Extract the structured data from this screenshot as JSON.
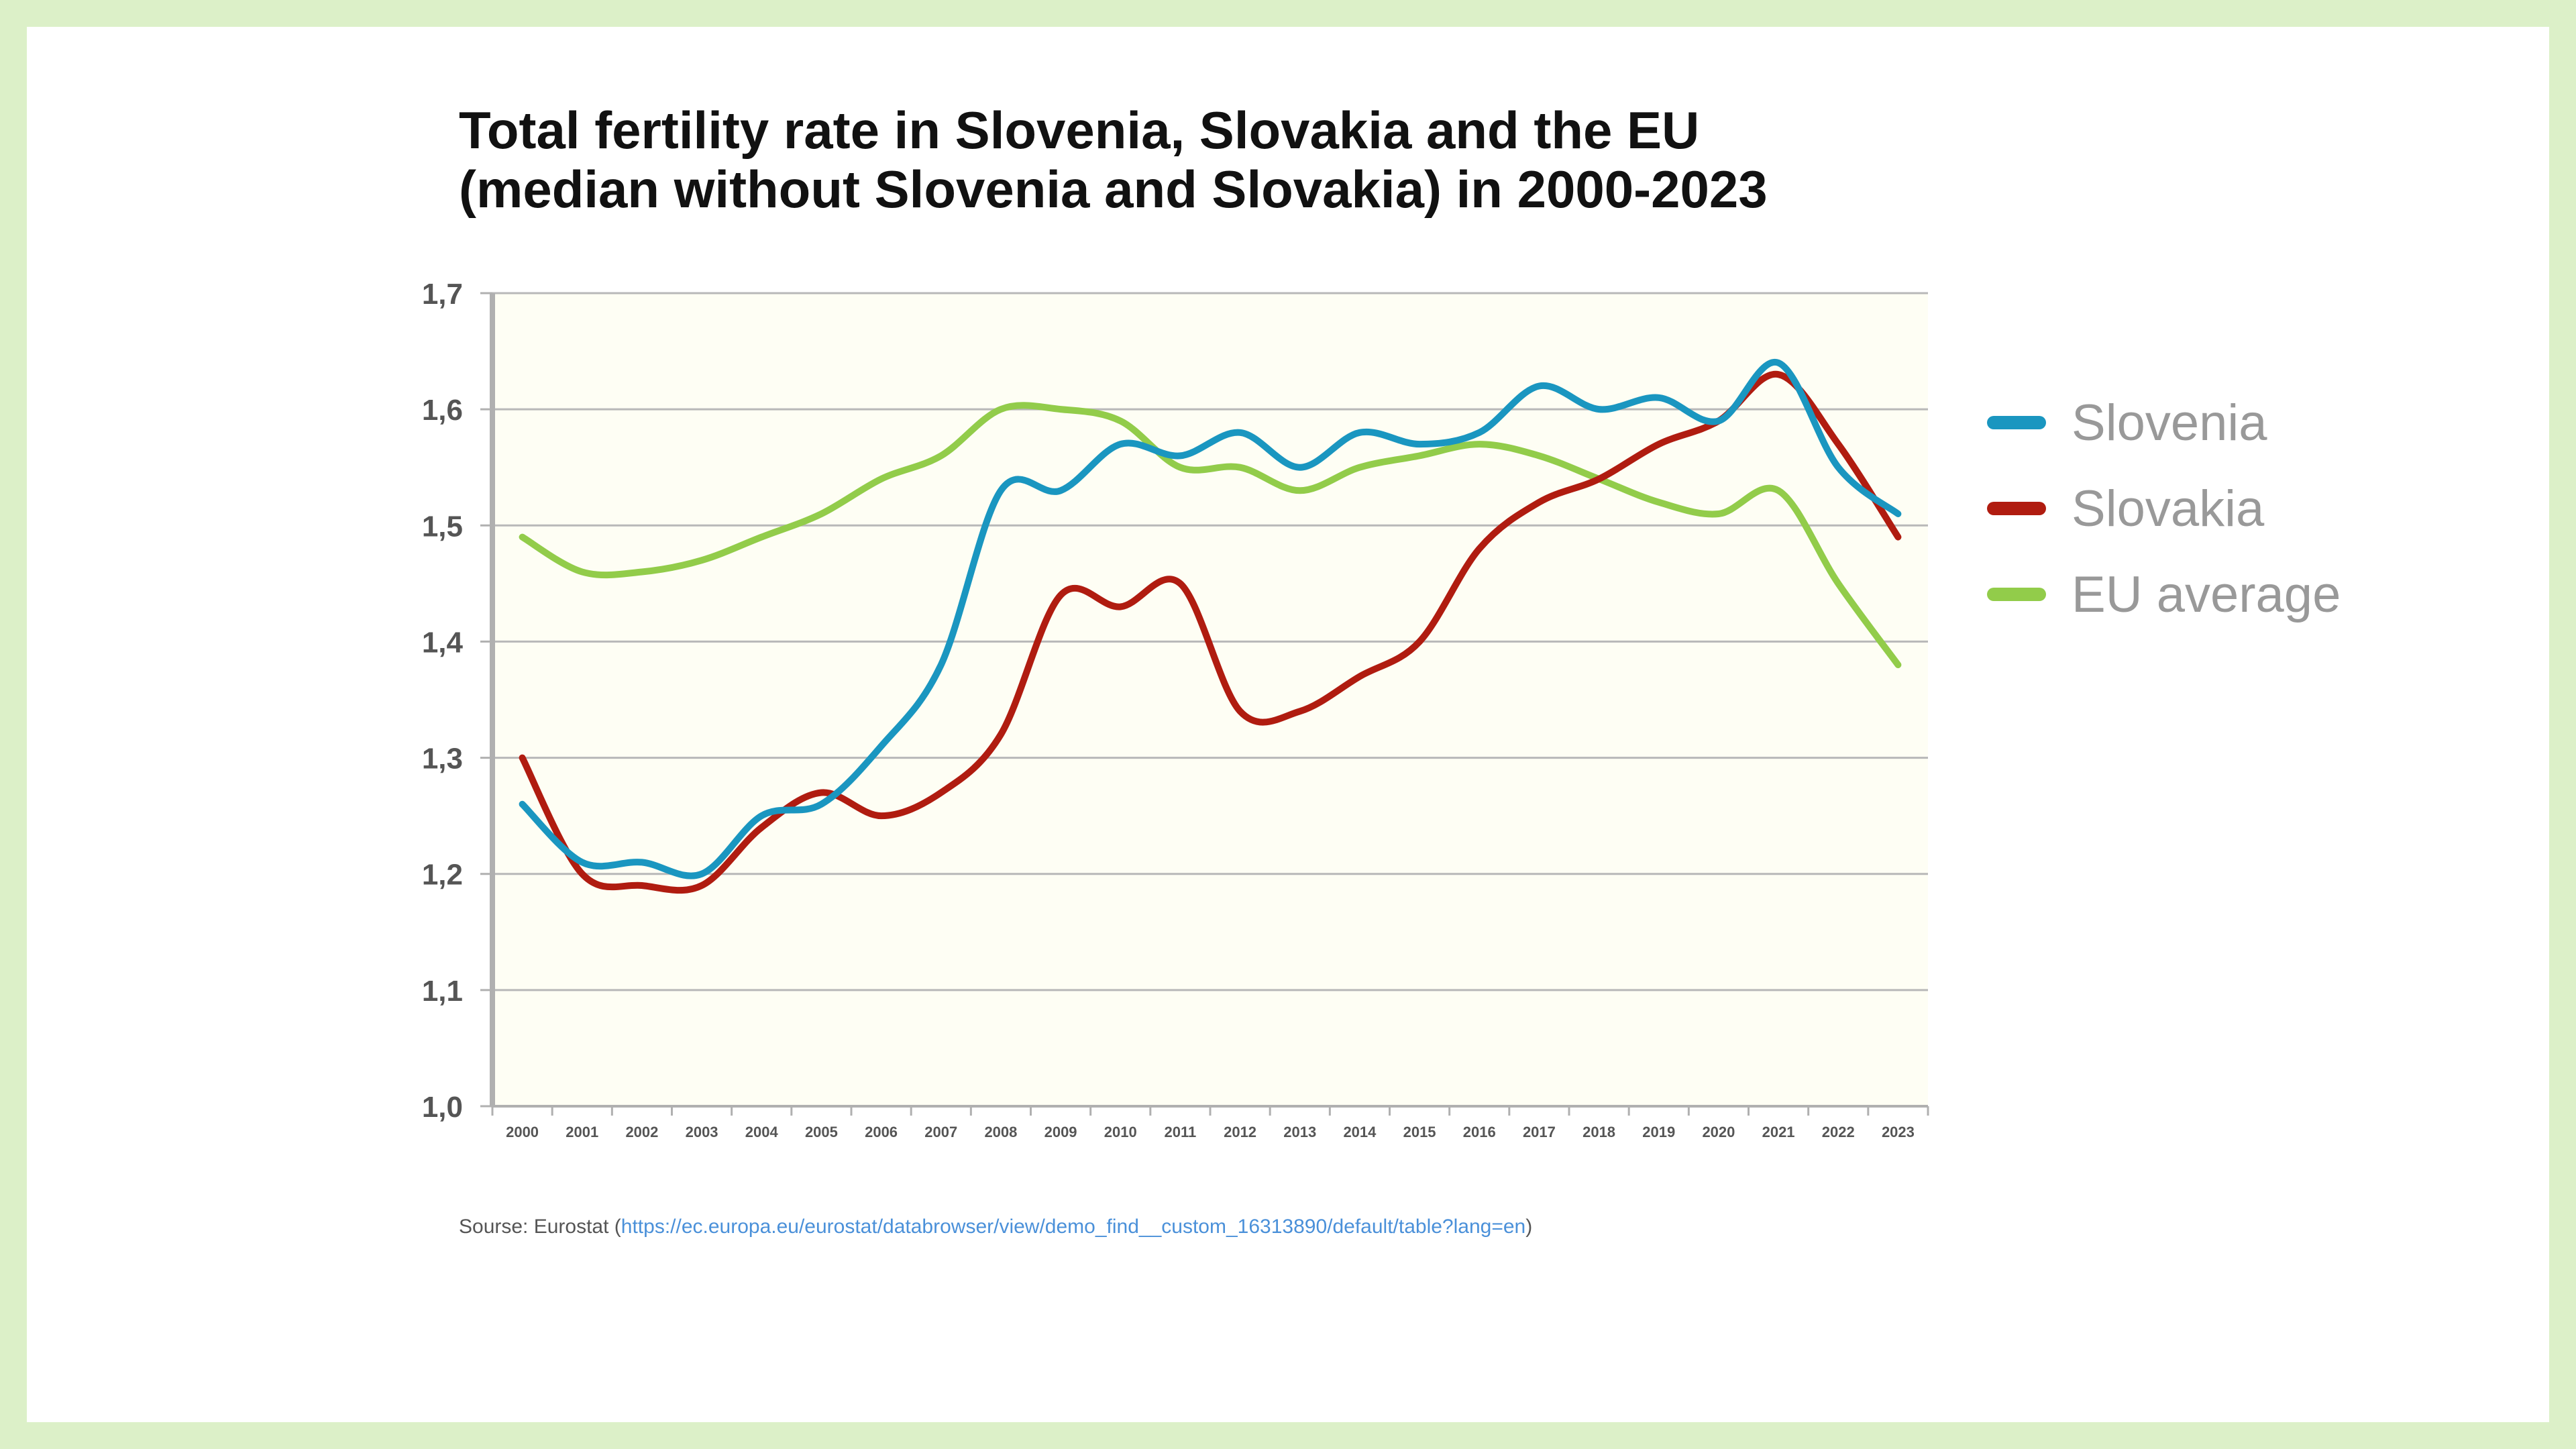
{
  "colors": {
    "page_background": "#dcf0c8",
    "plot_background": "#fefef4",
    "grid": "#b8b8b8",
    "axis": "#b0b0b0"
  },
  "source": {
    "prefix": "Sourse: Eurostat (",
    "link": "https://ec.europa.eu/eurostat/databrowser/view/demo_find__custom_16313890/default/table?lang=en",
    "suffix": ")"
  },
  "chart_data": {
    "type": "line",
    "title_lines": [
      "Total fertility rate in Slovenia, Slovakia and the EU",
      "(median without Slovenia and Slovakia) in 2000-2023"
    ],
    "xlabel": "",
    "ylabel": "",
    "categories": [
      "2000",
      "2001",
      "2002",
      "2003",
      "2004",
      "2005",
      "2006",
      "2007",
      "2008",
      "2009",
      "2010",
      "2011",
      "2012",
      "2013",
      "2014",
      "2015",
      "2016",
      "2017",
      "2018",
      "2019",
      "2020",
      "2021",
      "2022",
      "2023"
    ],
    "ylim": [
      1.0,
      1.7
    ],
    "yticks": [
      {
        "value": 1.0,
        "label": "1,0"
      },
      {
        "value": 1.1,
        "label": "1,1"
      },
      {
        "value": 1.2,
        "label": "1,2"
      },
      {
        "value": 1.3,
        "label": "1,3"
      },
      {
        "value": 1.4,
        "label": "1,4"
      },
      {
        "value": 1.5,
        "label": "1,5"
      },
      {
        "value": 1.6,
        "label": "1,6"
      },
      {
        "value": 1.7,
        "label": "1,7"
      }
    ],
    "grid": true,
    "legend_position": "right",
    "series": [
      {
        "name": "Slovenia",
        "color": "#1a96c0",
        "values": [
          1.26,
          1.21,
          1.21,
          1.2,
          1.25,
          1.26,
          1.31,
          1.38,
          1.53,
          1.53,
          1.57,
          1.56,
          1.58,
          1.55,
          1.58,
          1.57,
          1.58,
          1.62,
          1.6,
          1.61,
          1.59,
          1.64,
          1.55,
          1.51
        ]
      },
      {
        "name": "Slovakia",
        "color": "#b01c10",
        "values": [
          1.3,
          1.2,
          1.19,
          1.19,
          1.24,
          1.27,
          1.25,
          1.27,
          1.32,
          1.44,
          1.43,
          1.45,
          1.34,
          1.34,
          1.37,
          1.4,
          1.48,
          1.52,
          1.54,
          1.57,
          1.59,
          1.63,
          1.57,
          1.49
        ]
      },
      {
        "name": "EU average",
        "color": "#92cc4a",
        "values": [
          1.49,
          1.46,
          1.46,
          1.47,
          1.49,
          1.51,
          1.54,
          1.56,
          1.6,
          1.6,
          1.59,
          1.55,
          1.55,
          1.53,
          1.55,
          1.56,
          1.57,
          1.56,
          1.54,
          1.52,
          1.51,
          1.53,
          1.45,
          1.38
        ]
      }
    ]
  }
}
